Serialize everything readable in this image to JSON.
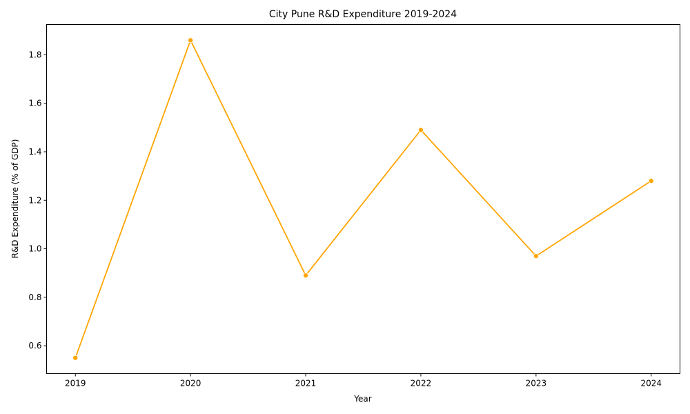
{
  "chart_data": {
    "type": "line",
    "title": "City Pune R&D Expenditure 2019-2024",
    "xlabel": "Year",
    "ylabel": "R&D Expenditure (% of GDP)",
    "x": [
      "2019",
      "2020",
      "2021",
      "2022",
      "2023",
      "2024"
    ],
    "series": [
      {
        "values": [
          0.55,
          1.86,
          0.89,
          1.49,
          0.97,
          1.28
        ]
      }
    ],
    "xlim": [
      2018.75,
      2024.25
    ],
    "ylim": [
      0.485,
      1.925
    ],
    "yticks": [
      0.6,
      0.8,
      1.0,
      1.2,
      1.4,
      1.6,
      1.8
    ],
    "ytick_labels": [
      "0.6",
      "0.8",
      "1.0",
      "1.2",
      "1.4",
      "1.6",
      "1.8"
    ],
    "grid": false,
    "markers": true,
    "color": "#FFA500"
  }
}
